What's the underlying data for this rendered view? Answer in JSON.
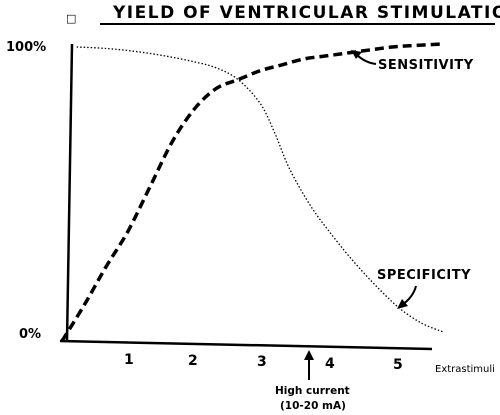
{
  "chart_data": {
    "type": "line",
    "title": "YIELD OF VENTRICULAR STIMULATION",
    "title_marker": "□",
    "xlabel": "Extrastimuli",
    "ylabel": "",
    "xlim": [
      0,
      5.6
    ],
    "ylim": [
      0,
      100
    ],
    "x_ticks": [
      "1",
      "2",
      "3",
      "4",
      "5"
    ],
    "y_ticks": [
      "0%",
      "100%"
    ],
    "grid": false,
    "series": [
      {
        "name": "SENSITIVITY",
        "style": "dashed-thick",
        "x": [
          0.0,
          0.3,
          0.6,
          0.9,
          1.2,
          1.5,
          1.8,
          2.1,
          2.4,
          2.7,
          3.0,
          3.3,
          3.6,
          3.9,
          4.2,
          4.5,
          4.8,
          5.2
        ],
        "y": [
          0,
          12,
          25,
          37,
          52,
          67,
          78,
          85,
          88,
          91,
          93,
          95,
          96,
          97,
          98,
          99,
          99.5,
          100
        ]
      },
      {
        "name": "SPECIFICITY",
        "style": "dotted-thin",
        "x": [
          0.2,
          0.6,
          1.0,
          1.4,
          1.8,
          2.1,
          2.4,
          2.7,
          2.9,
          3.1,
          3.4,
          3.7,
          4.0,
          4.3,
          4.6,
          4.9,
          5.2
        ],
        "y": [
          99,
          98.5,
          97.5,
          96,
          94,
          92,
          88,
          80,
          70,
          58,
          45,
          35,
          26,
          18,
          11,
          6,
          3
        ]
      }
    ],
    "annotations": [
      {
        "text": "High current",
        "x": 3.7
      },
      {
        "text": "(10-20 mA)",
        "x": 3.7
      }
    ]
  }
}
